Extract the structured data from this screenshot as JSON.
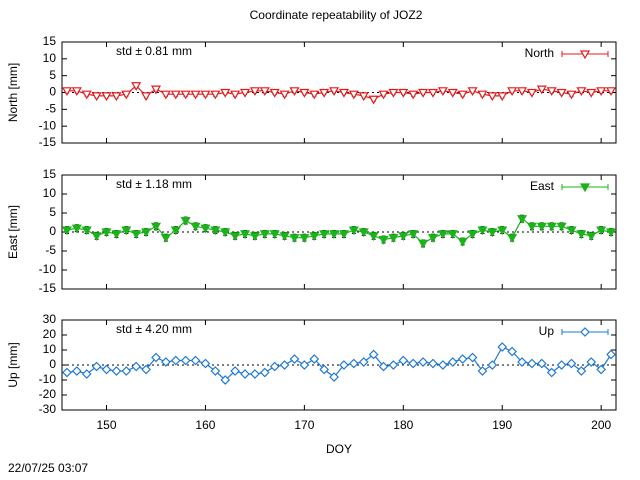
{
  "title": "Coordinate repeatability of JOZ2",
  "timestamp": "22/07/25 03:07",
  "chart_data": [
    {
      "type": "line",
      "ylabel": "North [mm]",
      "annotation": "std ± 0.81 mm",
      "legend": "upper right",
      "x": [
        146,
        147,
        148,
        149,
        150,
        151,
        152,
        153,
        154,
        155,
        156,
        157,
        158,
        159,
        160,
        161,
        162,
        163,
        164,
        165,
        166,
        167,
        168,
        169,
        170,
        171,
        172,
        173,
        174,
        175,
        176,
        177,
        178,
        179,
        180,
        181,
        182,
        183,
        184,
        185,
        186,
        187,
        188,
        189,
        190,
        191,
        192,
        193,
        194,
        195,
        196,
        197,
        198,
        199,
        200,
        201
      ],
      "xlim": [
        145.5,
        201.5
      ],
      "ylim": [
        -15,
        15
      ],
      "yticks": [
        -15,
        -10,
        -5,
        0,
        5,
        10,
        15
      ],
      "series": [
        {
          "name": "North",
          "color": "#e41a1c",
          "marker": "triangle-down-open",
          "error": 0.6,
          "values": [
            0.5,
            0.5,
            -0.5,
            -1,
            -1,
            -1,
            -0.5,
            2,
            -1,
            1,
            -0.5,
            -0.5,
            -0.5,
            -0.5,
            -0.5,
            -0.5,
            0,
            -0.5,
            0,
            0.5,
            0.5,
            0,
            -0.5,
            0.5,
            0,
            -0.5,
            0,
            0.5,
            0,
            -0.5,
            -1,
            -2,
            -0.5,
            0,
            0,
            -0.5,
            0,
            0,
            0.5,
            0,
            -0.5,
            0.5,
            -0.5,
            -1,
            -1,
            0.5,
            0.5,
            0,
            1,
            0.5,
            0,
            -0.5,
            0.5,
            0,
            0.5,
            0.5
          ]
        }
      ]
    },
    {
      "type": "line",
      "ylabel": "East [mm]",
      "annotation": "std ± 1.18 mm",
      "legend": "upper right",
      "x": [
        146,
        147,
        148,
        149,
        150,
        151,
        152,
        153,
        154,
        155,
        156,
        157,
        158,
        159,
        160,
        161,
        162,
        163,
        164,
        165,
        166,
        167,
        168,
        169,
        170,
        171,
        172,
        173,
        174,
        175,
        176,
        177,
        178,
        179,
        180,
        181,
        182,
        183,
        184,
        185,
        186,
        187,
        188,
        189,
        190,
        191,
        192,
        193,
        194,
        195,
        196,
        197,
        198,
        199,
        200,
        201
      ],
      "xlim": [
        145.5,
        201.5
      ],
      "ylim": [
        -15,
        15
      ],
      "yticks": [
        -15,
        -10,
        -5,
        0,
        5,
        10,
        15
      ],
      "series": [
        {
          "name": "East",
          "color": "#1ab31a",
          "marker": "triangle-down-filled",
          "error": 0.9,
          "values": [
            0.5,
            1,
            0.5,
            -1,
            0,
            -0.5,
            0.5,
            -0.5,
            0,
            1.5,
            -1.5,
            0.5,
            3,
            1.5,
            1,
            0.5,
            0,
            -1,
            -0.5,
            -1,
            -0.5,
            -0.5,
            -1,
            -1.5,
            -1.5,
            -1,
            -0.5,
            -0.5,
            -0.5,
            0.5,
            0,
            -1,
            -2,
            -1.5,
            -1,
            -0.5,
            -3,
            -1.5,
            -0.5,
            -0.5,
            -2.5,
            -0.5,
            0.5,
            0,
            0.5,
            -1.5,
            3.5,
            1.5,
            1.5,
            1.5,
            1.5,
            0.5,
            -0.5,
            -1,
            0.5,
            0
          ]
        }
      ]
    },
    {
      "type": "line",
      "ylabel": "Up [mm]",
      "annotation": "std ± 4.20 mm",
      "legend": "upper right",
      "xlabel": "DOY",
      "x": [
        146,
        147,
        148,
        149,
        150,
        151,
        152,
        153,
        154,
        155,
        156,
        157,
        158,
        159,
        160,
        161,
        162,
        163,
        164,
        165,
        166,
        167,
        168,
        169,
        170,
        171,
        172,
        173,
        174,
        175,
        176,
        177,
        178,
        179,
        180,
        181,
        182,
        183,
        184,
        185,
        186,
        187,
        188,
        189,
        190,
        191,
        192,
        193,
        194,
        195,
        196,
        197,
        198,
        199,
        200,
        201
      ],
      "xlim": [
        145.5,
        201.5
      ],
      "xticks": [
        150,
        160,
        170,
        180,
        190,
        200
      ],
      "ylim": [
        -30,
        30
      ],
      "yticks": [
        -30,
        -20,
        -10,
        0,
        10,
        20,
        30
      ],
      "series": [
        {
          "name": "Up",
          "color": "#1e78d2",
          "marker": "diamond-open",
          "error": 1.5,
          "values": [
            -5,
            -4,
            -6,
            -1,
            -3,
            -4,
            -4,
            -1,
            -3,
            5,
            2,
            3,
            3,
            3,
            1,
            -4,
            -10,
            -4,
            -6,
            -6,
            -5,
            -1,
            0,
            4,
            0,
            4,
            -3,
            -8,
            0,
            1,
            2,
            7,
            -1,
            0,
            3,
            1,
            2,
            1,
            0,
            2,
            4,
            5,
            -4,
            0,
            12,
            9,
            2,
            1,
            1,
            -5,
            0,
            1,
            -4,
            2,
            -3,
            7
          ]
        }
      ]
    }
  ]
}
